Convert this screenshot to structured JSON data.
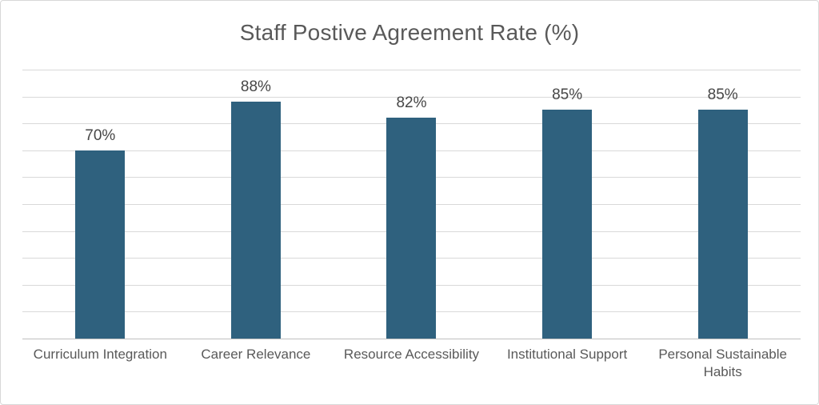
{
  "chart_data": {
    "type": "bar",
    "title": "Staff Postive Agreement Rate (%)",
    "categories": [
      "Curriculum Integration",
      "Career Relevance",
      "Resource Accessibility",
      "Institutional Support",
      "Personal Sustainable Habits"
    ],
    "values": [
      70,
      88,
      82,
      85,
      85
    ],
    "data_labels": [
      "70%",
      "88%",
      "82%",
      "85%",
      "85%"
    ],
    "xlabel": "",
    "ylabel": "",
    "ylim": [
      0,
      100
    ],
    "gridline_step": 10,
    "grid": true,
    "legend_position": "none",
    "bar_color": "#2f617e",
    "gridline_color": "#d9d9d9",
    "axis_line_color": "#bfbfbf",
    "title_color": "#595959",
    "label_color": "#464646",
    "category_label_color": "#595959"
  }
}
